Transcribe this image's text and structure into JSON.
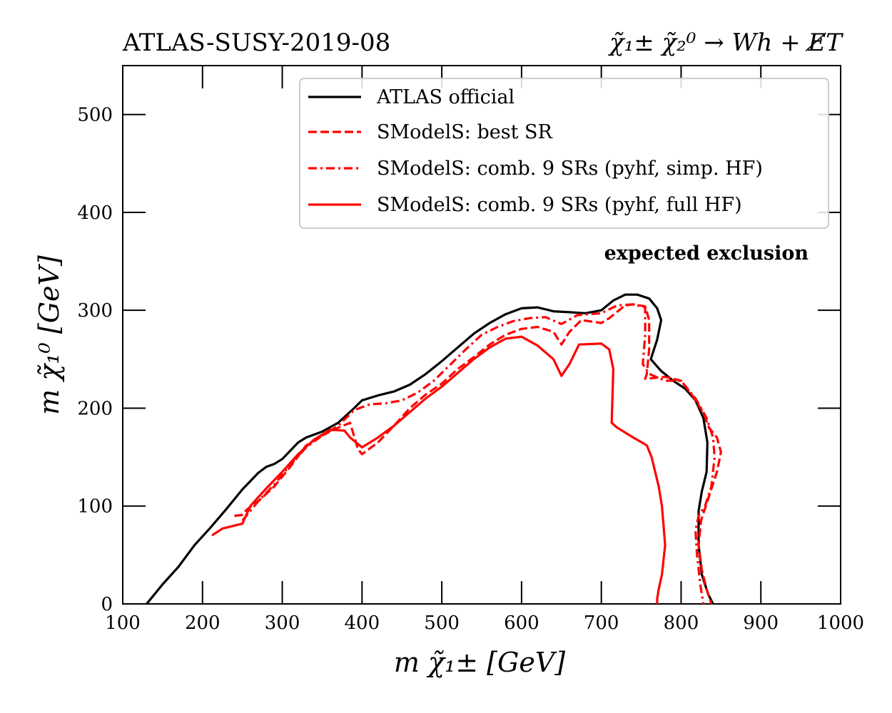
{
  "chart_data": {
    "type": "line",
    "title_left": "ATLAS-SUSY-2019-08",
    "title_right": "χ̃₁± χ̃₂⁰ → Wh + E̸T",
    "xlabel": "m χ̃₁± [GeV]",
    "ylabel": "m χ̃₁⁰ [GeV]",
    "xlim": [
      100,
      1000
    ],
    "ylim": [
      0,
      550
    ],
    "xticks": [
      100,
      200,
      300,
      400,
      500,
      600,
      700,
      800,
      900,
      1000
    ],
    "yticks": [
      0,
      100,
      200,
      300,
      400,
      500
    ],
    "annotation": "expected exclusion",
    "legend_position": "top-center",
    "series": [
      {
        "name": "ATLAS official",
        "color": "#000000",
        "style": "solid",
        "x": [
          130,
          150,
          170,
          190,
          210,
          230,
          250,
          270,
          280,
          290,
          300,
          320,
          330,
          350,
          370,
          390,
          400,
          420,
          440,
          460,
          480,
          500,
          520,
          540,
          560,
          580,
          600,
          620,
          640,
          660,
          680,
          700,
          715,
          730,
          745,
          760,
          770,
          775,
          770,
          762,
          775,
          790,
          805,
          818,
          828,
          833,
          832,
          826,
          822,
          822,
          826,
          834,
          840
        ],
        "y": [
          0,
          20,
          38,
          60,
          78,
          97,
          117,
          134,
          140,
          143,
          148,
          165,
          170,
          176,
          185,
          200,
          208,
          213,
          217,
          224,
          235,
          248,
          262,
          276,
          287,
          296,
          302,
          303,
          299,
          298,
          297,
          300,
          310,
          316,
          316,
          312,
          302,
          290,
          270,
          250,
          238,
          228,
          220,
          208,
          190,
          165,
          135,
          115,
          95,
          60,
          30,
          10,
          0
        ]
      },
      {
        "name": "SModelS: best SR",
        "color": "#ff0000",
        "style": "dashed",
        "x": [
          240,
          250,
          255,
          270,
          290,
          310,
          330,
          350,
          370,
          385,
          395,
          400,
          420,
          440,
          460,
          480,
          500,
          520,
          540,
          560,
          580,
          600,
          620,
          640,
          650,
          660,
          675,
          700,
          710,
          730,
          740,
          755,
          760,
          760,
          757,
          755,
          780,
          800,
          815,
          828,
          835,
          845,
          850,
          845,
          835,
          825,
          822,
          826,
          832,
          838
        ],
        "y": [
          90,
          91,
          96,
          105,
          120,
          140,
          162,
          172,
          180,
          185,
          158,
          153,
          165,
          182,
          200,
          214,
          225,
          240,
          252,
          265,
          275,
          281,
          283,
          278,
          265,
          278,
          290,
          287,
          292,
          305,
          306,
          304,
          290,
          260,
          235,
          230,
          232,
          228,
          212,
          195,
          180,
          170,
          155,
          135,
          110,
          85,
          60,
          35,
          15,
          0
        ]
      },
      {
        "name": "SModelS: comb. 9 SRs (pyhf, simp. HF)",
        "color": "#ff0000",
        "style": "dashdot",
        "x": [
          250,
          260,
          270,
          290,
          310,
          330,
          350,
          370,
          390,
          410,
          430,
          450,
          470,
          490,
          510,
          530,
          550,
          570,
          590,
          610,
          630,
          650,
          670,
          700,
          720,
          740,
          755,
          755,
          752,
          760,
          780,
          800,
          818,
          832,
          840,
          842,
          838,
          830,
          822,
          818,
          820,
          824,
          828
        ],
        "y": [
          85,
          95,
          105,
          122,
          142,
          160,
          172,
          182,
          198,
          204,
          205,
          208,
          216,
          228,
          244,
          260,
          275,
          283,
          289,
          292,
          293,
          286,
          295,
          297,
          305,
          306,
          303,
          275,
          245,
          235,
          228,
          228,
          210,
          190,
          170,
          150,
          120,
          100,
          90,
          75,
          50,
          20,
          0
        ]
      },
      {
        "name": "SModelS: comb. 9 SRs (pyhf, full HF)",
        "color": "#ff0000",
        "style": "solid",
        "x": [
          212,
          225,
          250,
          260,
          280,
          300,
          320,
          340,
          360,
          378,
          385,
          400,
          420,
          440,
          460,
          480,
          500,
          520,
          540,
          560,
          580,
          600,
          620,
          640,
          650,
          660,
          672,
          700,
          710,
          715,
          713,
          720,
          740,
          757,
          763,
          772,
          776,
          780,
          776,
          772,
          770,
          770
        ],
        "y": [
          70,
          77,
          82,
          100,
          118,
          135,
          153,
          168,
          178,
          177,
          170,
          160,
          170,
          182,
          196,
          210,
          222,
          236,
          250,
          262,
          271,
          273,
          264,
          250,
          233,
          245,
          265,
          266,
          260,
          240,
          185,
          180,
          170,
          162,
          150,
          120,
          100,
          60,
          30,
          15,
          5,
          0
        ]
      }
    ]
  },
  "legend": [
    {
      "label": "ATLAS official"
    },
    {
      "label": "SModelS: best SR"
    },
    {
      "label": "SModelS: comb. 9 SRs (pyhf, simp. HF)"
    },
    {
      "label": "SModelS: comb. 9 SRs (pyhf, full HF)"
    }
  ]
}
